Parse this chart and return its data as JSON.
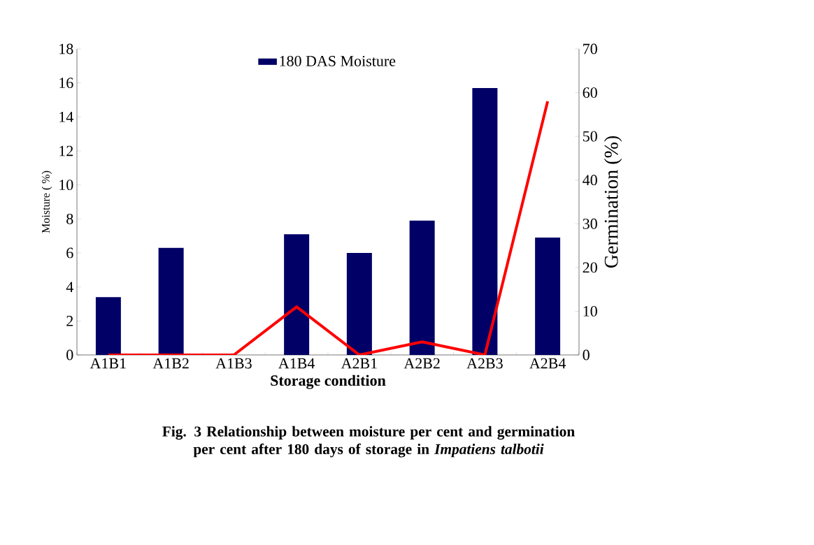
{
  "chart_data": {
    "type": "bar",
    "title": "Fig. 3 Relationship between moisture per cent and germination per cent after 180 days of storage in *Impatiens talbotii*",
    "xlabel": "Storage condition",
    "ylabel": "Moisture ( %)",
    "y2label": "Germination (%)",
    "categories": [
      "A1B1",
      "A1B2",
      "A1B3",
      "A1B4",
      "A2B1",
      "A2B2",
      "A2B3",
      "A2B4"
    ],
    "series": [
      {
        "name": "180 DAS  Moisture",
        "color": "#000066",
        "values": [
          3.4,
          6.3,
          0,
          7.1,
          6.0,
          7.9,
          15.7,
          6.9
        ]
      },
      {
        "type": "line",
        "axis": "y2",
        "color": "#ff0000",
        "marker": "none",
        "values": [
          0,
          0,
          0,
          11,
          0,
          3,
          0,
          58
        ]
      }
    ],
    "ylim": [
      0,
      18
    ],
    "yticks": [
      0,
      2,
      4,
      6,
      8,
      10,
      12,
      14,
      16,
      18
    ],
    "y2lim": [
      0,
      70
    ],
    "y2ticks": [
      0,
      10,
      20,
      30,
      40,
      50,
      60,
      70
    ],
    "legend": "top"
  }
}
